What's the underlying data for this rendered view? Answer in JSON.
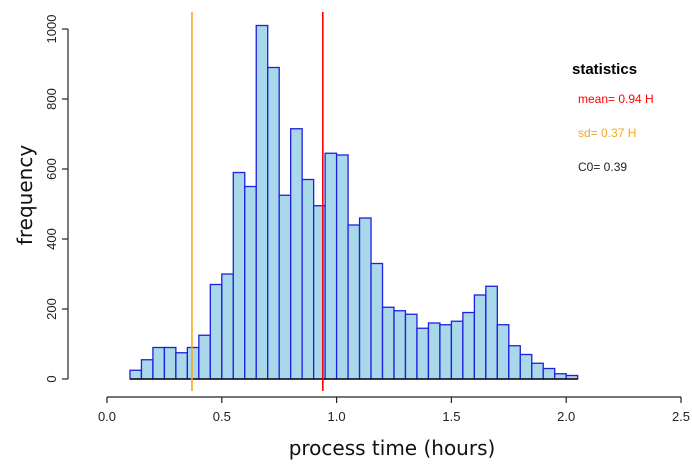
{
  "chart_data": {
    "type": "bar",
    "xlabel": "process time (hours)",
    "ylabel": "frequency",
    "xlim": [
      0,
      2.5
    ],
    "ylim": [
      0,
      1000
    ],
    "xticks": [
      "0.0",
      "0.5",
      "1.0",
      "1.5",
      "2.0",
      "2.5"
    ],
    "yticks": [
      "0",
      "200",
      "400",
      "600",
      "800",
      "1000"
    ],
    "bin_edges": [
      0.1,
      0.15,
      0.2,
      0.25,
      0.3,
      0.35,
      0.4,
      0.45,
      0.5,
      0.55,
      0.6,
      0.65,
      0.7,
      0.75,
      0.8,
      0.85,
      0.9,
      0.95,
      1.0,
      1.05,
      1.1,
      1.15,
      1.2,
      1.25,
      1.3,
      1.35,
      1.4,
      1.45,
      1.5,
      1.55,
      1.6,
      1.65,
      1.7,
      1.75,
      1.8,
      1.85,
      1.9,
      1.95,
      2.0,
      2.05
    ],
    "values": [
      25,
      55,
      90,
      90,
      75,
      90,
      125,
      270,
      300,
      590,
      550,
      1010,
      890,
      525,
      715,
      570,
      495,
      645,
      640,
      440,
      460,
      330,
      205,
      195,
      185,
      145,
      160,
      155,
      165,
      190,
      240,
      265,
      155,
      95,
      70,
      45,
      30,
      15,
      10
    ],
    "bar_fill": "#a8d8ea",
    "bar_stroke": "#1f1fe0",
    "reference_lines": [
      {
        "label": "mean",
        "x": 0.94,
        "color": "#ff0000"
      },
      {
        "label": "sd",
        "x": 0.37,
        "color": "#f5a623"
      }
    ],
    "legend_placement": "top-right",
    "grid": false
  },
  "statistics": {
    "title": "statistics",
    "mean": "mean= 0.94 H",
    "sd": "sd=  0.37 H",
    "c0": "C0= 0.39",
    "mean_color": "#ff0000",
    "sd_color": "#f5a623",
    "c0_color": "#222222"
  }
}
